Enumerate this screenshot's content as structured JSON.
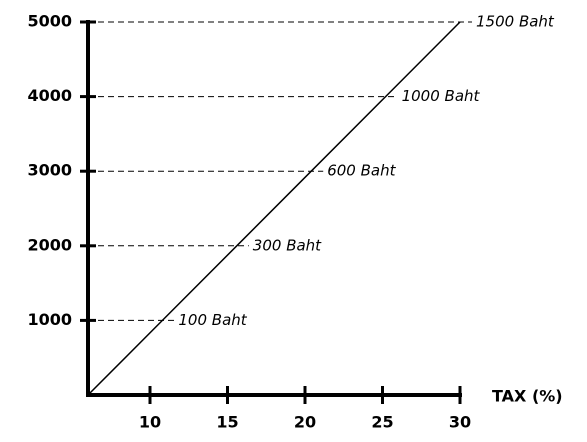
{
  "chart_data": {
    "type": "line",
    "x_label": "TAX (%)",
    "x": [
      6,
      10.8,
      15.6,
      20.4,
      25.2,
      30
    ],
    "values": [
      0,
      1000,
      2000,
      3000,
      4000,
      5000
    ],
    "point_labels": [
      null,
      "100 Baht",
      "300 Baht",
      "600 Baht",
      "1000 Baht",
      "1500 Baht"
    ],
    "color": "#000000",
    "xlim": [
      6,
      30
    ],
    "xticks": [
      10,
      15,
      20,
      25,
      30
    ],
    "ylim": [
      0,
      5000
    ],
    "yticks": [
      1000,
      2000,
      3000,
      4000,
      5000
    ],
    "grid": true
  }
}
